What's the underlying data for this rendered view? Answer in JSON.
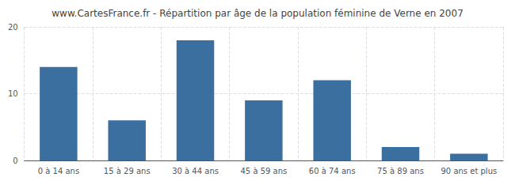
{
  "chart_data": {
    "type": "bar",
    "title": "www.CartesFrance.fr - Répartition par âge de la population féminine de Verne en 2007",
    "categories": [
      "0 à 14 ans",
      "15 à 29 ans",
      "30 à 44 ans",
      "45 à 59 ans",
      "60 à 74 ans",
      "75 à 89 ans",
      "90 ans et plus"
    ],
    "values": [
      14,
      6,
      18,
      9,
      12,
      2,
      1
    ],
    "color": "#3a6f9f",
    "ylim": [
      0,
      20
    ],
    "yticks": [
      0,
      10,
      20
    ],
    "grid": true
  }
}
